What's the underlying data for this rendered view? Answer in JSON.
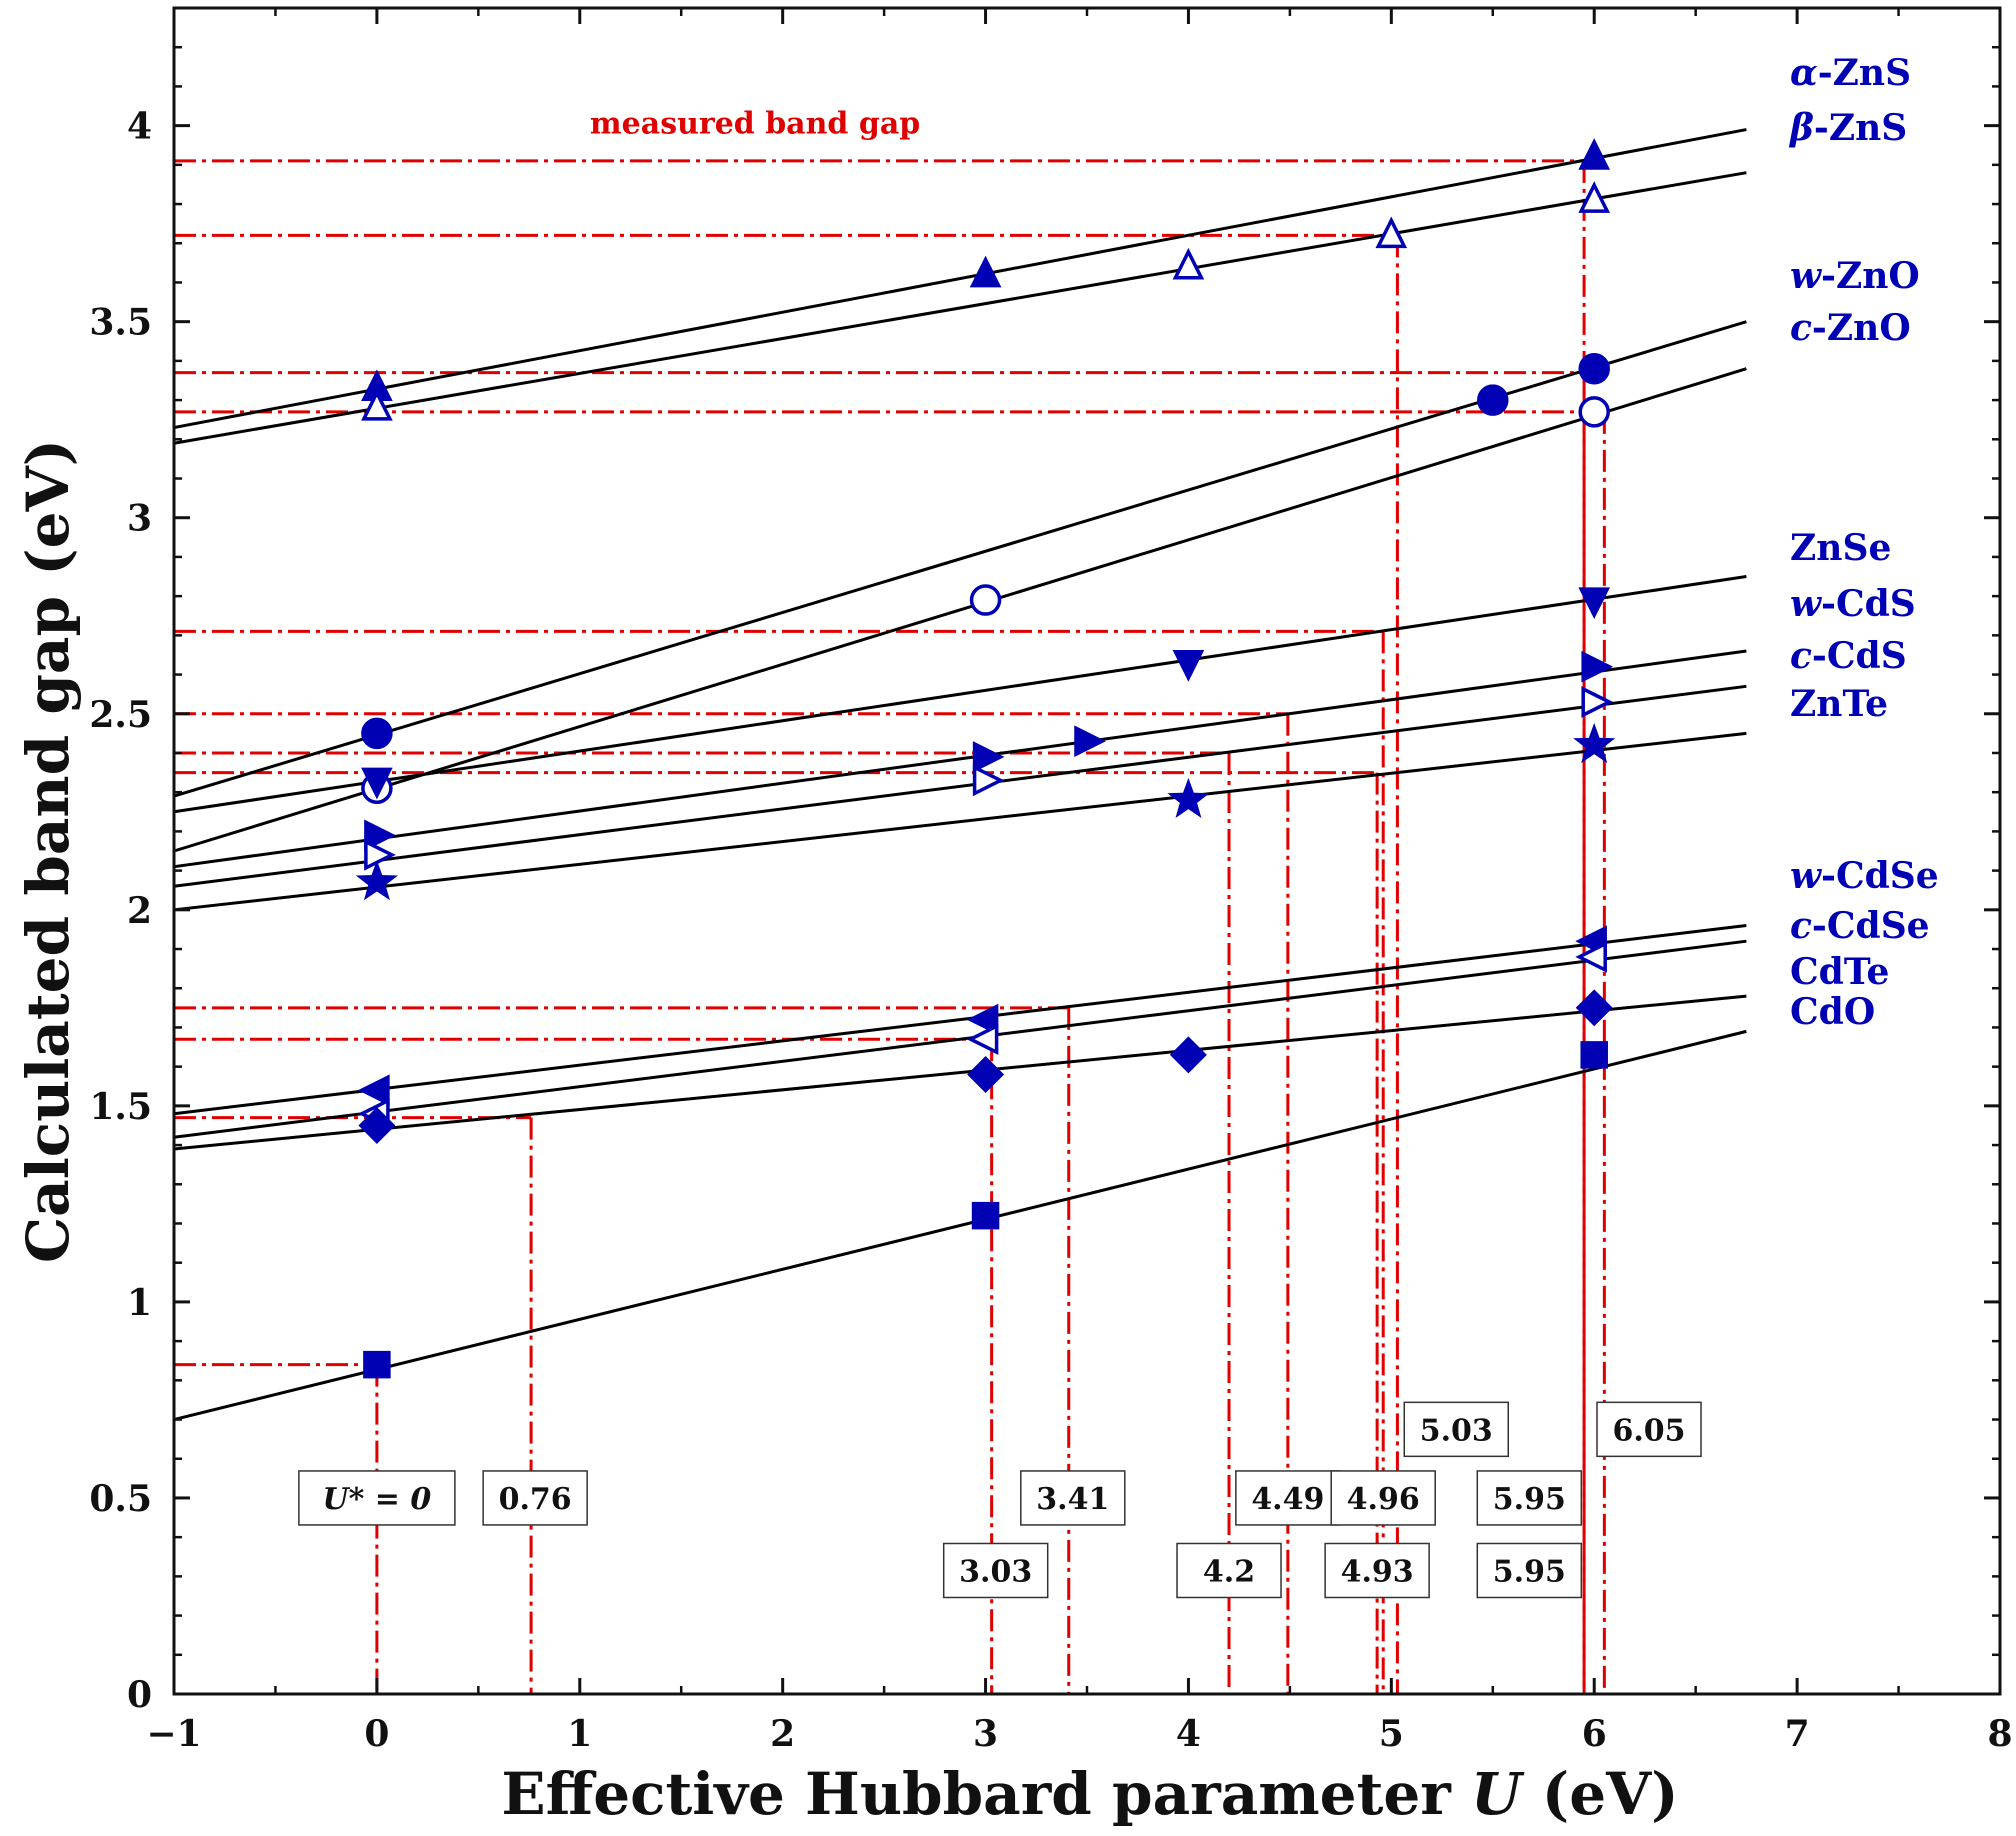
{
  "chart_data": {
    "type": "scatter",
    "xlabel": "Effective Hubbard parameter U (eV)",
    "xlabel_parts": [
      "Effective Hubbard parameter ",
      "U",
      " (eV)"
    ],
    "ylabel": "Calculated band gap (eV)",
    "xlim": [
      -1,
      8
    ],
    "ylim": [
      0,
      4.3
    ],
    "x_ticks": [
      -1,
      0,
      1,
      2,
      3,
      4,
      5,
      6,
      7,
      8
    ],
    "x_tick_labels": [
      "−1",
      "0",
      "1",
      "2",
      "3",
      "4",
      "5",
      "6",
      "7",
      "8"
    ],
    "y_ticks": [
      0,
      0.5,
      1,
      1.5,
      2,
      2.5,
      3,
      3.5,
      4
    ],
    "y_tick_labels": [
      "0",
      "0.5",
      "1",
      "1.5",
      "2",
      "2.5",
      "3",
      "3.5",
      "4"
    ],
    "grid": false,
    "colors": {
      "marker": "#0000b4",
      "fit_line": "#000000",
      "guide": "#e00000"
    },
    "annotation": "measured band gap",
    "series": [
      {
        "name": "α-ZnS",
        "marker": "triangle-up-filled",
        "x": [
          0,
          3,
          6
        ],
        "y": [
          3.33,
          3.62,
          3.92
        ],
        "fit": [
          [
            -1,
            3.23
          ],
          [
            6.75,
            3.99
          ]
        ]
      },
      {
        "name": "β-ZnS",
        "marker": "triangle-up-open",
        "x": [
          0,
          4,
          5,
          6
        ],
        "y": [
          3.28,
          3.64,
          3.72,
          3.81
        ],
        "fit": [
          [
            -1,
            3.19
          ],
          [
            6.75,
            3.88
          ]
        ]
      },
      {
        "name": "w-ZnO",
        "marker": "circle-filled",
        "x": [
          0,
          5.5,
          6
        ],
        "y": [
          2.45,
          3.3,
          3.38
        ],
        "fit": [
          [
            -1,
            2.29
          ],
          [
            6.75,
            3.5
          ]
        ]
      },
      {
        "name": "c-ZnO",
        "marker": "circle-open",
        "x": [
          0,
          3,
          6
        ],
        "y": [
          2.31,
          2.79,
          3.27
        ],
        "fit": [
          [
            -1,
            2.15
          ],
          [
            6.75,
            3.38
          ]
        ]
      },
      {
        "name": "ZnSe",
        "marker": "triangle-down-filled",
        "x": [
          0,
          4,
          6
        ],
        "y": [
          2.33,
          2.63,
          2.79
        ],
        "fit": [
          [
            -1,
            2.25
          ],
          [
            6.75,
            2.85
          ]
        ]
      },
      {
        "name": "w-CdS",
        "marker": "triangle-right-filled",
        "x": [
          0,
          3,
          3.5,
          6
        ],
        "y": [
          2.19,
          2.39,
          2.43,
          2.62
        ],
        "fit": [
          [
            -1,
            2.11
          ],
          [
            6.75,
            2.66
          ]
        ]
      },
      {
        "name": "c-CdS",
        "marker": "triangle-right-open",
        "x": [
          0,
          3,
          6
        ],
        "y": [
          2.14,
          2.33,
          2.53
        ],
        "fit": [
          [
            -1,
            2.06
          ],
          [
            6.75,
            2.57
          ]
        ]
      },
      {
        "name": "ZnTe",
        "marker": "star-filled",
        "x": [
          0,
          4,
          6
        ],
        "y": [
          2.07,
          2.28,
          2.42
        ],
        "fit": [
          [
            -1,
            2.0
          ],
          [
            6.75,
            2.45
          ]
        ]
      },
      {
        "name": "w-CdSe",
        "marker": "triangle-left-filled",
        "x": [
          0,
          3,
          6
        ],
        "y": [
          1.54,
          1.72,
          1.92
        ],
        "fit": [
          [
            -1,
            1.48
          ],
          [
            6.75,
            1.96
          ]
        ]
      },
      {
        "name": "c-CdSe",
        "marker": "triangle-left-open",
        "x": [
          0,
          3,
          6
        ],
        "y": [
          1.48,
          1.67,
          1.88
        ],
        "fit": [
          [
            -1,
            1.42
          ],
          [
            6.75,
            1.92
          ]
        ]
      },
      {
        "name": "CdTe",
        "marker": "diamond-filled",
        "x": [
          0,
          3,
          4,
          6
        ],
        "y": [
          1.45,
          1.58,
          1.63,
          1.75
        ],
        "fit": [
          [
            -1,
            1.39
          ],
          [
            6.75,
            1.78
          ]
        ]
      },
      {
        "name": "CdO",
        "marker": "square-filled",
        "x": [
          0,
          3,
          6
        ],
        "y": [
          0.84,
          1.22,
          1.63
        ],
        "fit": [
          [
            -1,
            0.7
          ],
          [
            6.75,
            1.69
          ]
        ]
      }
    ],
    "measured_band_gaps": [
      {
        "y": 3.91,
        "x_to": 6.0
      },
      {
        "y": 3.72,
        "x_to": 5.03
      },
      {
        "y": 3.37,
        "x_to": 6.0
      },
      {
        "y": 3.27,
        "x_to": 6.05
      },
      {
        "y": 2.71,
        "x_to": 4.96
      },
      {
        "y": 2.5,
        "x_to": 4.49
      },
      {
        "y": 2.4,
        "x_to": 4.2
      },
      {
        "y": 2.35,
        "x_to": 4.93
      },
      {
        "y": 1.75,
        "x_to": 3.41
      },
      {
        "y": 1.67,
        "x_to": 3.03
      },
      {
        "y": 1.47,
        "x_to": 0.76
      },
      {
        "y": 0.84,
        "x_to": 0
      }
    ],
    "optimal_U_markers": [
      {
        "x": 0,
        "y_top": 0.84
      },
      {
        "x": 0.76,
        "y_top": 1.47
      },
      {
        "x": 3.03,
        "y_top": 1.67
      },
      {
        "x": 3.41,
        "y_top": 1.75
      },
      {
        "x": 4.2,
        "y_top": 2.4
      },
      {
        "x": 4.49,
        "y_top": 2.5
      },
      {
        "x": 4.93,
        "y_top": 2.35
      },
      {
        "x": 4.96,
        "y_top": 2.71
      },
      {
        "x": 5.03,
        "y_top": 3.72
      },
      {
        "x": 5.95,
        "y_top": 3.91
      },
      {
        "x": 5.95,
        "y_top": 3.37
      },
      {
        "x": 6.05,
        "y_top": 3.27
      }
    ],
    "boxes": [
      {
        "text": "U* = 0",
        "x": 0.0,
        "y": 0.5
      },
      {
        "text": "0.76",
        "x": 0.78,
        "y": 0.5
      },
      {
        "text": "3.41",
        "x": 3.43,
        "y": 0.5
      },
      {
        "text": "3.03",
        "x": 3.05,
        "y": 0.315
      },
      {
        "text": "4.49",
        "x": 4.49,
        "y": 0.5
      },
      {
        "text": "4.2",
        "x": 4.2,
        "y": 0.315
      },
      {
        "text": "4.96",
        "x": 4.96,
        "y": 0.5
      },
      {
        "text": "4.93",
        "x": 4.93,
        "y": 0.315
      },
      {
        "text": "5.03",
        "x": 5.32,
        "y": 0.675
      },
      {
        "text": "5.95",
        "x": 5.68,
        "y": 0.5
      },
      {
        "text": "5.95",
        "x": 5.68,
        "y": 0.315
      },
      {
        "text": "6.05",
        "x": 6.27,
        "y": 0.675
      }
    ]
  }
}
